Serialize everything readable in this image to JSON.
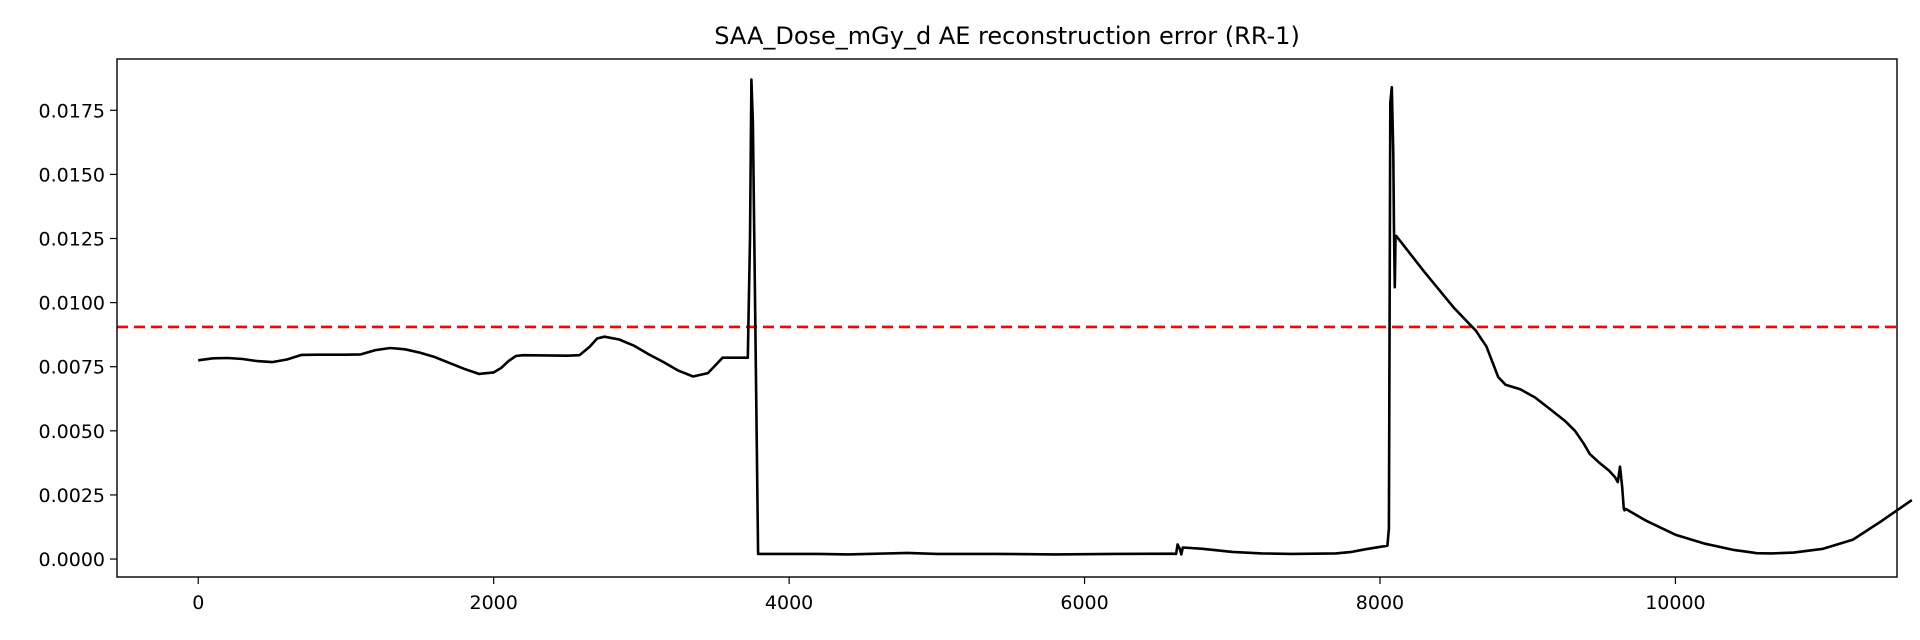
{
  "chart_data": {
    "type": "line",
    "title": "SAA_Dose_mGy_d AE reconstruction error (RR-1)",
    "xlabel": "",
    "ylabel": "",
    "xlim": [
      -550,
      11500
    ],
    "ylim": [
      -0.0007,
      0.0195
    ],
    "grid": false,
    "x_ticks": [
      0,
      2000,
      4000,
      6000,
      8000,
      10000
    ],
    "x_tick_labels": [
      "0",
      "2000",
      "4000",
      "6000",
      "8000",
      "10000"
    ],
    "y_ticks": [
      0.0,
      0.0025,
      0.005,
      0.0075,
      0.01,
      0.0125,
      0.015,
      0.0175
    ],
    "y_tick_labels": [
      "0.0000",
      "0.0025",
      "0.0050",
      "0.0075",
      "0.0100",
      "0.0125",
      "0.0150",
      "0.0175"
    ],
    "threshold": {
      "value": 0.00905,
      "style": "dashed",
      "color": "#ff0000"
    },
    "series": [
      {
        "color": "#000000",
        "points": [
          [
            0,
            0.00775
          ],
          [
            100,
            0.00783
          ],
          [
            200,
            0.00784
          ],
          [
            300,
            0.0078
          ],
          [
            400,
            0.00772
          ],
          [
            500,
            0.00768
          ],
          [
            600,
            0.00778
          ],
          [
            700,
            0.00796
          ],
          [
            800,
            0.00797
          ],
          [
            1000,
            0.00797
          ],
          [
            1100,
            0.00798
          ],
          [
            1200,
            0.00815
          ],
          [
            1300,
            0.00823
          ],
          [
            1400,
            0.00818
          ],
          [
            1500,
            0.00805
          ],
          [
            1600,
            0.00788
          ],
          [
            1700,
            0.00765
          ],
          [
            1800,
            0.00742
          ],
          [
            1900,
            0.00722
          ],
          [
            2000,
            0.00728
          ],
          [
            2050,
            0.00745
          ],
          [
            2100,
            0.00772
          ],
          [
            2150,
            0.00792
          ],
          [
            2200,
            0.00795
          ],
          [
            2500,
            0.00793
          ],
          [
            2580,
            0.00795
          ],
          [
            2650,
            0.00828
          ],
          [
            2700,
            0.0086
          ],
          [
            2750,
            0.00867
          ],
          [
            2850,
            0.00856
          ],
          [
            2950,
            0.00832
          ],
          [
            3050,
            0.00798
          ],
          [
            3150,
            0.00768
          ],
          [
            3250,
            0.00735
          ],
          [
            3350,
            0.00712
          ],
          [
            3450,
            0.00725
          ],
          [
            3500,
            0.00755
          ],
          [
            3550,
            0.00785
          ],
          [
            3650,
            0.00785
          ],
          [
            3720,
            0.00785
          ],
          [
            3735,
            0.0125
          ],
          [
            3745,
            0.0187
          ],
          [
            3755,
            0.017
          ],
          [
            3790,
            0.0002
          ],
          [
            4000,
            0.0002
          ],
          [
            4200,
            0.0002
          ],
          [
            4400,
            0.00018
          ],
          [
            4600,
            0.00021
          ],
          [
            4800,
            0.00024
          ],
          [
            5000,
            0.0002
          ],
          [
            5400,
            0.0002
          ],
          [
            5800,
            0.00018
          ],
          [
            6200,
            0.0002
          ],
          [
            6600,
            0.00021
          ],
          [
            6620,
            0.0002
          ],
          [
            6630,
            0.00057
          ],
          [
            6645,
            0.0004
          ],
          [
            6655,
            0.00018
          ],
          [
            6665,
            0.00045
          ],
          [
            6800,
            0.0004
          ],
          [
            7000,
            0.00028
          ],
          [
            7200,
            0.00022
          ],
          [
            7400,
            0.0002
          ],
          [
            7700,
            0.00022
          ],
          [
            7800,
            0.00027
          ],
          [
            7900,
            0.00038
          ],
          [
            8050,
            0.00052
          ],
          [
            8060,
            0.0012
          ],
          [
            8070,
            0.0178
          ],
          [
            8080,
            0.0184
          ],
          [
            8090,
            0.0158
          ],
          [
            8095,
            0.0128
          ],
          [
            8100,
            0.0106
          ],
          [
            8105,
            0.0125
          ],
          [
            8110,
            0.0126
          ],
          [
            8300,
            0.0112
          ],
          [
            8500,
            0.0098
          ],
          [
            8600,
            0.0092
          ],
          [
            8650,
            0.0089
          ],
          [
            8690,
            0.00855
          ],
          [
            8720,
            0.0083
          ],
          [
            8800,
            0.0071
          ],
          [
            8850,
            0.0068
          ],
          [
            8950,
            0.00662
          ],
          [
            9050,
            0.0063
          ],
          [
            9150,
            0.00585
          ],
          [
            9250,
            0.0054
          ],
          [
            9320,
            0.005
          ],
          [
            9380,
            0.0045
          ],
          [
            9420,
            0.0041
          ],
          [
            9480,
            0.00378
          ],
          [
            9550,
            0.00345
          ],
          [
            9590,
            0.0032
          ],
          [
            9610,
            0.003
          ],
          [
            9625,
            0.0036
          ],
          [
            9640,
            0.0028
          ],
          [
            9650,
            0.002
          ],
          [
            9655,
            0.0019
          ],
          [
            9665,
            0.00195
          ],
          [
            9800,
            0.0015
          ],
          [
            10000,
            0.00095
          ],
          [
            10200,
            0.0006
          ],
          [
            10400,
            0.00035
          ],
          [
            10500,
            0.00027
          ],
          [
            10550,
            0.00023
          ],
          [
            10650,
            0.00022
          ],
          [
            10800,
            0.00025
          ],
          [
            11000,
            0.0004
          ],
          [
            11200,
            0.00075
          ],
          [
            11400,
            0.0015
          ],
          [
            11600,
            0.0023
          ]
        ]
      }
    ]
  }
}
